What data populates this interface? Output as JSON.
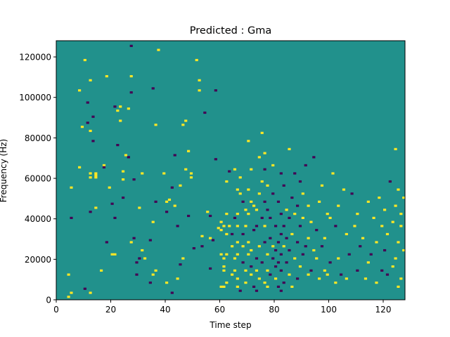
{
  "chart_data": {
    "type": "heatmap",
    "title": "Predicted : Gma",
    "xlabel": "Time step",
    "ylabel": "Frequency (Hz)",
    "xlim": [
      0,
      128
    ],
    "ylim": [
      0,
      128000
    ],
    "xticks": [
      0,
      20,
      40,
      60,
      80,
      100,
      120
    ],
    "yticks": [
      0,
      20000,
      40000,
      60000,
      80000,
      100000,
      120000
    ],
    "xtick_labels": [
      "0",
      "20",
      "40",
      "60",
      "80",
      "100",
      "120"
    ],
    "ytick_labels": [
      "0",
      "20000",
      "40000",
      "60000",
      "80000",
      "100000",
      "120000"
    ],
    "colormap": "viridis",
    "value_levels": {
      "low": 0,
      "mid": 0.5,
      "high": 1
    },
    "colors": {
      "low": "#440154",
      "mid": "#21918c",
      "high": "#fde725"
    },
    "background_value": 0.5,
    "grid": false,
    "legend": "none",
    "cells": [
      [
        4,
        1,
        1
      ],
      [
        4,
        12,
        1
      ],
      [
        5,
        3,
        1
      ],
      [
        5,
        40,
        0
      ],
      [
        5,
        55,
        1
      ],
      [
        8,
        65,
        1
      ],
      [
        8,
        103,
        1
      ],
      [
        9,
        85,
        1
      ],
      [
        10,
        5,
        0
      ],
      [
        10,
        118,
        1
      ],
      [
        11,
        87,
        0
      ],
      [
        11,
        97,
        0
      ],
      [
        12,
        3,
        1
      ],
      [
        12,
        43,
        0
      ],
      [
        12,
        83,
        1
      ],
      [
        12,
        108,
        1
      ],
      [
        12,
        60,
        1
      ],
      [
        12,
        62,
        1
      ],
      [
        13,
        78,
        0
      ],
      [
        13,
        90,
        0
      ],
      [
        14,
        45,
        1
      ],
      [
        14,
        60,
        1
      ],
      [
        14,
        61,
        1
      ],
      [
        14,
        62,
        1
      ],
      [
        16,
        14,
        1
      ],
      [
        17,
        66,
        1
      ],
      [
        17,
        65,
        0
      ],
      [
        18,
        28,
        0
      ],
      [
        18,
        110,
        1
      ],
      [
        19,
        55,
        1
      ],
      [
        20,
        22,
        1
      ],
      [
        20,
        47,
        0
      ],
      [
        21,
        22,
        1
      ],
      [
        21,
        40,
        0
      ],
      [
        21,
        95,
        0
      ],
      [
        22,
        93,
        1
      ],
      [
        22,
        76,
        0
      ],
      [
        23,
        88,
        1
      ],
      [
        23,
        95,
        1
      ],
      [
        24,
        50,
        0
      ],
      [
        24,
        59,
        1
      ],
      [
        24,
        63,
        1
      ],
      [
        25,
        71,
        1
      ],
      [
        26,
        70,
        0
      ],
      [
        26,
        94,
        1
      ],
      [
        27,
        28,
        1
      ],
      [
        27,
        102,
        0
      ],
      [
        27,
        110,
        1
      ],
      [
        27,
        125,
        0
      ],
      [
        28,
        30,
        0
      ],
      [
        28,
        59,
        0
      ],
      [
        29,
        12,
        0
      ],
      [
        29,
        18,
        0
      ],
      [
        30,
        20,
        0
      ],
      [
        30,
        45,
        1
      ],
      [
        31,
        24,
        1
      ],
      [
        31,
        62,
        1
      ],
      [
        32,
        20,
        1
      ],
      [
        34,
        8,
        0
      ],
      [
        34,
        29,
        0
      ],
      [
        35,
        12,
        1
      ],
      [
        35,
        38,
        1
      ],
      [
        35,
        104,
        0
      ],
      [
        36,
        14,
        1
      ],
      [
        36,
        48,
        0
      ],
      [
        36,
        86,
        1
      ],
      [
        37,
        123,
        1
      ],
      [
        39,
        62,
        1
      ],
      [
        40,
        8,
        1
      ],
      [
        40,
        48,
        1
      ],
      [
        40,
        43,
        0
      ],
      [
        41,
        49,
        1
      ],
      [
        42,
        3,
        0
      ],
      [
        42,
        55,
        0
      ],
      [
        43,
        71,
        0
      ],
      [
        43,
        46,
        1
      ],
      [
        44,
        10,
        1
      ],
      [
        44,
        36,
        0
      ],
      [
        45,
        17,
        0
      ],
      [
        45,
        56,
        1
      ],
      [
        46,
        20,
        1
      ],
      [
        46,
        86,
        1
      ],
      [
        47,
        64,
        1
      ],
      [
        47,
        88,
        1
      ],
      [
        48,
        41,
        0
      ],
      [
        48,
        73,
        1
      ],
      [
        49,
        60,
        1
      ],
      [
        49,
        62,
        1
      ],
      [
        50,
        25,
        0
      ],
      [
        51,
        118,
        1
      ],
      [
        52,
        108,
        1
      ],
      [
        52,
        103,
        1
      ],
      [
        53,
        26,
        0
      ],
      [
        53,
        31,
        1
      ],
      [
        54,
        92,
        0
      ],
      [
        55,
        43,
        1
      ],
      [
        56,
        15,
        0
      ],
      [
        56,
        30,
        1
      ],
      [
        56,
        41,
        0
      ],
      [
        57,
        29,
        0
      ],
      [
        58,
        69,
        0
      ],
      [
        58,
        103,
        0
      ],
      [
        59,
        35,
        1
      ],
      [
        60,
        6,
        1
      ],
      [
        60,
        22,
        1
      ],
      [
        60,
        34,
        1
      ],
      [
        60,
        38,
        1
      ],
      [
        61,
        6,
        1
      ],
      [
        61,
        14,
        1
      ],
      [
        61,
        16,
        1
      ],
      [
        61,
        20,
        1
      ],
      [
        61,
        36,
        1
      ],
      [
        62,
        8,
        1
      ],
      [
        62,
        22,
        1
      ],
      [
        62,
        32,
        1
      ],
      [
        62,
        42,
        1
      ],
      [
        62,
        58,
        1
      ],
      [
        63,
        36,
        1
      ],
      [
        63,
        63,
        0
      ],
      [
        64,
        12,
        1
      ],
      [
        64,
        26,
        1
      ],
      [
        64,
        32,
        0
      ],
      [
        65,
        14,
        1
      ],
      [
        65,
        20,
        1
      ],
      [
        65,
        40,
        0
      ],
      [
        65,
        64,
        1
      ],
      [
        66,
        6,
        1
      ],
      [
        66,
        10,
        1
      ],
      [
        66,
        22,
        1
      ],
      [
        66,
        28,
        1
      ],
      [
        66,
        36,
        1
      ],
      [
        66,
        42,
        1
      ],
      [
        66,
        54,
        1
      ],
      [
        67,
        4,
        0
      ],
      [
        67,
        52,
        1
      ],
      [
        67,
        60,
        1
      ],
      [
        68,
        18,
        0
      ],
      [
        68,
        26,
        1
      ],
      [
        68,
        32,
        0
      ],
      [
        68,
        48,
        0
      ],
      [
        69,
        8,
        1
      ],
      [
        69,
        14,
        1
      ],
      [
        69,
        36,
        1
      ],
      [
        69,
        44,
        1
      ],
      [
        70,
        22,
        1
      ],
      [
        70,
        28,
        1
      ],
      [
        70,
        42,
        1
      ],
      [
        70,
        54,
        1
      ],
      [
        70,
        78,
        1
      ],
      [
        71,
        12,
        1
      ],
      [
        71,
        16,
        0
      ],
      [
        71,
        24,
        1
      ],
      [
        71,
        48,
        1
      ],
      [
        71,
        64,
        1
      ],
      [
        72,
        6,
        0
      ],
      [
        72,
        34,
        0
      ],
      [
        72,
        46,
        1
      ],
      [
        73,
        4,
        0
      ],
      [
        73,
        14,
        1
      ],
      [
        73,
        20,
        0
      ],
      [
        73,
        36,
        0
      ],
      [
        73,
        44,
        1
      ],
      [
        74,
        10,
        1
      ],
      [
        74,
        26,
        1
      ],
      [
        74,
        52,
        1
      ],
      [
        74,
        70,
        1
      ],
      [
        75,
        18,
        0
      ],
      [
        75,
        40,
        0
      ],
      [
        75,
        58,
        1
      ],
      [
        75,
        82,
        1
      ],
      [
        76,
        8,
        1
      ],
      [
        76,
        28,
        0
      ],
      [
        76,
        36,
        1
      ],
      [
        76,
        48,
        0
      ],
      [
        76,
        64,
        0
      ],
      [
        76,
        72,
        1
      ],
      [
        77,
        6,
        1
      ],
      [
        77,
        14,
        1
      ],
      [
        77,
        22,
        1
      ],
      [
        77,
        44,
        0
      ],
      [
        77,
        56,
        1
      ],
      [
        78,
        12,
        0
      ],
      [
        78,
        30,
        0
      ],
      [
        78,
        40,
        0
      ],
      [
        79,
        20,
        0
      ],
      [
        79,
        26,
        1
      ],
      [
        79,
        52,
        0
      ],
      [
        79,
        66,
        1
      ],
      [
        80,
        10,
        1
      ],
      [
        80,
        16,
        0
      ],
      [
        80,
        24,
        0
      ],
      [
        80,
        36,
        0
      ],
      [
        81,
        6,
        0
      ],
      [
        81,
        18,
        0
      ],
      [
        81,
        28,
        0
      ],
      [
        81,
        48,
        0
      ],
      [
        82,
        4,
        0
      ],
      [
        82,
        14,
        0
      ],
      [
        82,
        22,
        0
      ],
      [
        82,
        32,
        0
      ],
      [
        82,
        42,
        0
      ],
      [
        82,
        62,
        0
      ],
      [
        83,
        8,
        0
      ],
      [
        83,
        26,
        1
      ],
      [
        83,
        36,
        0
      ],
      [
        83,
        56,
        0
      ],
      [
        84,
        18,
        0
      ],
      [
        84,
        30,
        0
      ],
      [
        84,
        44,
        1
      ],
      [
        85,
        12,
        1
      ],
      [
        85,
        24,
        0
      ],
      [
        85,
        40,
        0
      ],
      [
        85,
        74,
        1
      ],
      [
        86,
        6,
        1
      ],
      [
        86,
        32,
        1
      ],
      [
        86,
        50,
        0
      ],
      [
        87,
        20,
        1
      ],
      [
        87,
        42,
        1
      ],
      [
        87,
        62,
        0
      ],
      [
        88,
        10,
        0
      ],
      [
        88,
        28,
        0
      ],
      [
        88,
        46,
        0
      ],
      [
        89,
        16,
        1
      ],
      [
        89,
        36,
        0
      ],
      [
        89,
        58,
        0
      ],
      [
        90,
        22,
        0
      ],
      [
        90,
        40,
        1
      ],
      [
        90,
        52,
        1
      ],
      [
        91,
        26,
        0
      ],
      [
        91,
        66,
        0
      ],
      [
        92,
        12,
        1
      ],
      [
        92,
        30,
        1
      ],
      [
        92,
        46,
        1
      ],
      [
        93,
        14,
        0
      ],
      [
        93,
        38,
        1
      ],
      [
        94,
        24,
        1
      ],
      [
        94,
        70,
        0
      ],
      [
        95,
        20,
        1
      ],
      [
        95,
        34,
        0
      ],
      [
        96,
        10,
        1
      ],
      [
        96,
        48,
        1
      ],
      [
        97,
        26,
        0
      ],
      [
        97,
        56,
        1
      ],
      [
        98,
        14,
        1
      ],
      [
        98,
        30,
        1
      ],
      [
        99,
        12,
        1
      ],
      [
        99,
        42,
        1
      ],
      [
        100,
        18,
        0
      ],
      [
        100,
        40,
        1
      ],
      [
        101,
        62,
        1
      ],
      [
        102,
        8,
        1
      ],
      [
        102,
        36,
        0
      ],
      [
        103,
        20,
        1
      ],
      [
        103,
        46,
        1
      ],
      [
        104,
        12,
        0
      ],
      [
        105,
        54,
        1
      ],
      [
        106,
        10,
        1
      ],
      [
        106,
        32,
        1
      ],
      [
        107,
        22,
        0
      ],
      [
        108,
        52,
        0
      ],
      [
        109,
        36,
        1
      ],
      [
        110,
        14,
        0
      ],
      [
        110,
        42,
        1
      ],
      [
        111,
        26,
        0
      ],
      [
        112,
        30,
        1
      ],
      [
        113,
        10,
        1
      ],
      [
        114,
        18,
        1
      ],
      [
        114,
        48,
        1
      ],
      [
        115,
        22,
        0
      ],
      [
        116,
        40,
        1
      ],
      [
        117,
        8,
        1
      ],
      [
        117,
        28,
        1
      ],
      [
        118,
        50,
        1
      ],
      [
        119,
        14,
        0
      ],
      [
        119,
        36,
        1
      ],
      [
        120,
        24,
        0
      ],
      [
        120,
        44,
        1
      ],
      [
        121,
        12,
        0
      ],
      [
        121,
        32,
        1
      ],
      [
        122,
        58,
        0
      ],
      [
        123,
        16,
        1
      ],
      [
        123,
        38,
        1
      ],
      [
        124,
        20,
        1
      ],
      [
        124,
        46,
        1
      ],
      [
        124,
        74,
        1
      ],
      [
        125,
        6,
        1
      ],
      [
        125,
        28,
        1
      ],
      [
        125,
        54,
        1
      ],
      [
        126,
        10,
        1
      ],
      [
        126,
        36,
        1
      ],
      [
        126,
        42,
        1
      ],
      [
        127,
        24,
        1
      ],
      [
        127,
        50,
        1
      ]
    ]
  }
}
